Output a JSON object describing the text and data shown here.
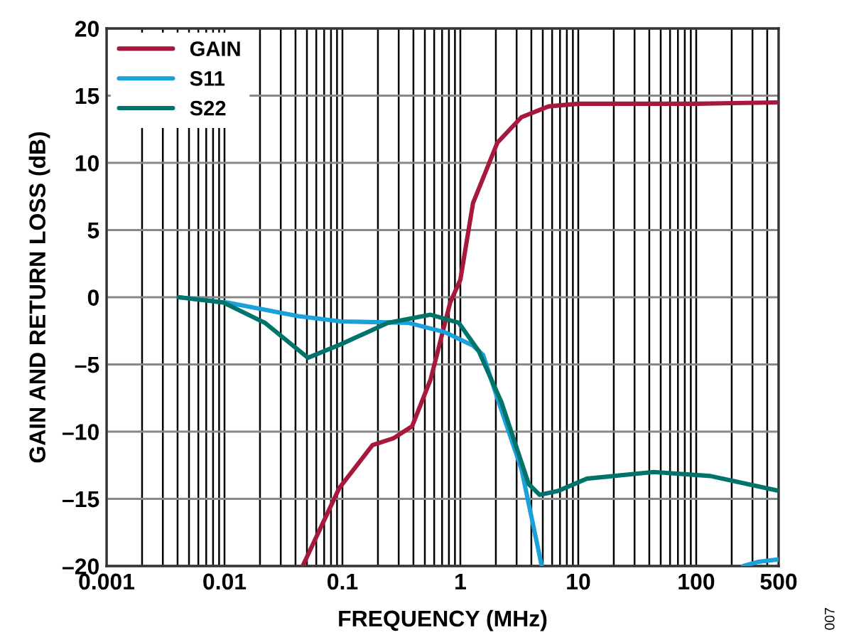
{
  "chart_data": {
    "type": "line",
    "xlabel": "FREQUENCY (MHz)",
    "ylabel": "GAIN AND RETURN LOSS (dB)",
    "log": "x",
    "xlim": [
      0.001,
      500
    ],
    "ylim": [
      -20,
      20
    ],
    "xticks": [
      0.001,
      0.01,
      0.1,
      1,
      10,
      100,
      500
    ],
    "yticks": [
      {
        "value": -20,
        "label": "–20"
      },
      {
        "value": -15,
        "label": "–15"
      },
      {
        "value": -10,
        "label": "–10"
      },
      {
        "value": -5,
        "label": "–5"
      },
      0,
      5,
      10,
      15,
      20
    ],
    "grid": true,
    "legend": "top left",
    "marker": "none",
    "line_style": "solid",
    "annotations": [
      "007"
    ],
    "series": [
      {
        "name": "GAIN",
        "color": "#a6193c",
        "x": [
          0.046,
          0.094,
          0.18,
          0.27,
          0.39,
          0.56,
          0.82,
          1.0,
          1.28,
          2.06,
          3.3,
          5.6,
          10,
          100,
          500
        ],
        "values": [
          -20,
          -14.2,
          -11,
          -10.5,
          -9.6,
          -6.1,
          -0.4,
          1.3,
          7.0,
          11.5,
          13.4,
          14.2,
          14.4,
          14.4,
          14.5
        ]
      },
      {
        "name": "S11",
        "color": "#1ba1d9",
        "x": [
          0.0041,
          0.0106,
          0.042,
          0.097,
          0.36,
          0.74,
          1.28,
          1.56,
          2.06,
          3.3,
          4.9,
          100,
          250,
          330,
          500
        ],
        "values": [
          0,
          -0.4,
          -1.4,
          -1.8,
          -1.9,
          -2.6,
          -3.6,
          -4.3,
          -7.5,
          -12.8,
          -20,
          null,
          -20,
          -19.7,
          -19.5
        ]
      },
      {
        "name": "S22",
        "color": "#00736b",
        "x": [
          0.0041,
          0.0098,
          0.022,
          0.051,
          0.097,
          0.243,
          0.56,
          0.97,
          1.43,
          2.23,
          3.8,
          4.7,
          6.8,
          11.8,
          43.5,
          132,
          500
        ],
        "values": [
          0,
          -0.4,
          -1.9,
          -4.5,
          -3.5,
          -1.9,
          -1.3,
          -1.9,
          -4.0,
          -7.8,
          -13.9,
          -14.7,
          -14.4,
          -13.5,
          -13.0,
          -13.3,
          -14.4
        ]
      }
    ]
  }
}
